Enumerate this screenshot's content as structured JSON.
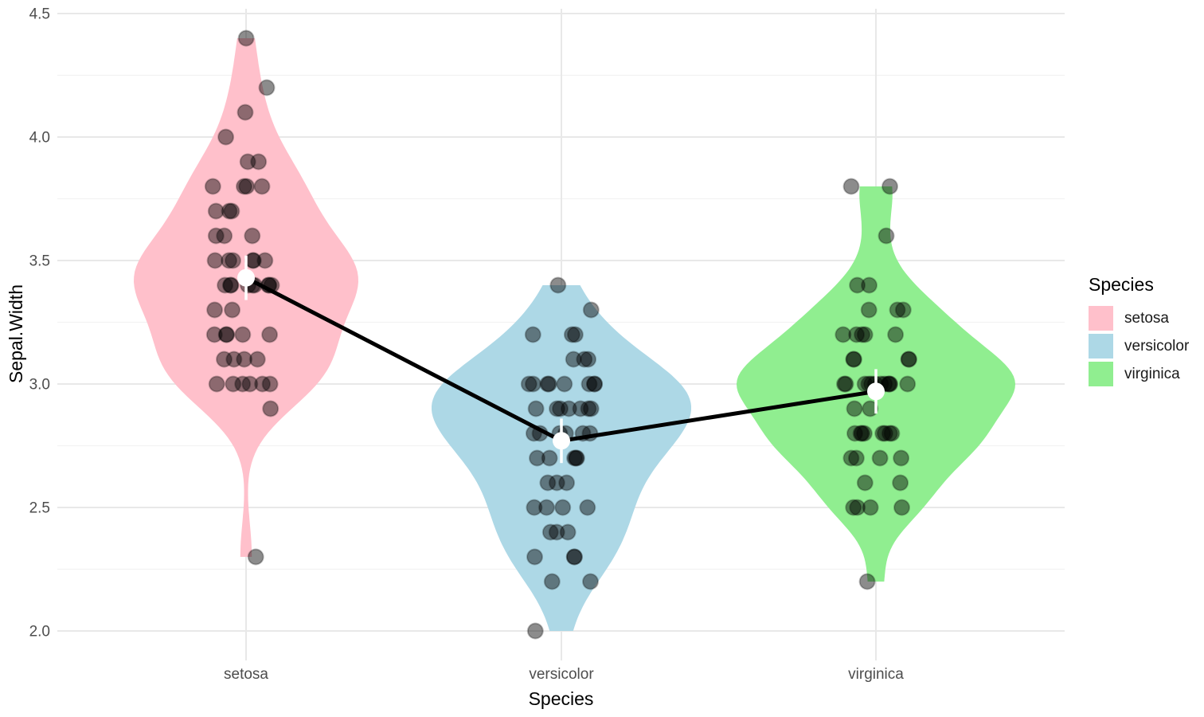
{
  "chart_data": {
    "type": "violin",
    "title": "",
    "xlabel": "Species",
    "ylabel": "Sepal.Width",
    "categories": [
      "setosa",
      "versicolor",
      "virginica"
    ],
    "grid": true,
    "background": "#FFFFFF",
    "gridline_color": "#E8E8E8",
    "minor_gridline_color": "#F2F2F2",
    "y_axis": {
      "range": [
        1.88,
        4.52
      ],
      "major_ticks": [
        2.0,
        2.5,
        3.0,
        3.5,
        4.0,
        4.5
      ],
      "tick_labels": [
        "2.0",
        "2.5",
        "3.0",
        "3.5",
        "4.0",
        "4.5"
      ],
      "minor_ticks": [
        2.25,
        2.75,
        3.25,
        3.75,
        4.25
      ]
    },
    "series": [
      {
        "name": "setosa",
        "color": "#FFC0CB",
        "values": [
          3.5,
          3.0,
          3.2,
          3.1,
          3.6,
          3.9,
          3.4,
          3.4,
          2.9,
          3.1,
          3.7,
          3.4,
          3.0,
          3.0,
          4.0,
          4.4,
          3.9,
          3.5,
          3.8,
          3.8,
          3.4,
          3.7,
          3.6,
          3.3,
          3.4,
          3.0,
          3.4,
          3.5,
          3.4,
          3.2,
          3.1,
          3.4,
          4.1,
          4.2,
          3.1,
          3.2,
          3.5,
          3.6,
          3.0,
          3.4,
          3.5,
          2.3,
          3.2,
          3.5,
          3.8,
          3.0,
          3.8,
          3.2,
          3.7,
          3.3
        ],
        "mean": 3.43,
        "errorbar": [
          3.34,
          3.52
        ]
      },
      {
        "name": "versicolor",
        "color": "#ADD8E6",
        "values": [
          3.2,
          3.2,
          3.1,
          2.3,
          2.8,
          2.8,
          3.3,
          2.4,
          2.9,
          2.7,
          2.0,
          3.0,
          2.2,
          2.9,
          2.9,
          3.1,
          3.0,
          2.7,
          2.2,
          2.5,
          3.2,
          2.8,
          2.5,
          2.8,
          2.9,
          3.0,
          2.8,
          3.0,
          2.9,
          2.6,
          2.4,
          2.4,
          2.7,
          2.7,
          3.0,
          3.4,
          3.1,
          2.3,
          3.0,
          2.5,
          2.6,
          3.0,
          2.6,
          2.3,
          2.7,
          3.0,
          2.9,
          2.9,
          2.5,
          2.8
        ],
        "mean": 2.77,
        "errorbar": [
          2.68,
          2.86
        ]
      },
      {
        "name": "virginica",
        "color": "#90EE90",
        "values": [
          3.3,
          2.7,
          3.0,
          2.9,
          3.0,
          3.0,
          2.5,
          2.9,
          2.5,
          3.6,
          3.2,
          2.7,
          3.0,
          2.5,
          2.8,
          3.2,
          3.0,
          3.8,
          2.6,
          2.2,
          3.2,
          2.8,
          2.8,
          2.7,
          3.3,
          3.2,
          2.8,
          3.0,
          2.8,
          3.0,
          2.8,
          3.8,
          2.8,
          2.8,
          2.6,
          3.0,
          3.4,
          3.1,
          3.0,
          3.1,
          3.1,
          3.1,
          2.7,
          3.2,
          3.3,
          3.0,
          2.5,
          3.0,
          3.4,
          3.0
        ],
        "mean": 2.97,
        "errorbar": [
          2.88,
          3.06
        ]
      }
    ],
    "overlays": {
      "jitter_points": true,
      "point_color": "#000000",
      "point_alpha": 0.45,
      "mean_line_color": "#000000",
      "mean_point_color": "#FFFFFF",
      "errorbar_color": "#FFFFFF"
    },
    "legend": {
      "position": "right",
      "title": "Species",
      "entries": [
        {
          "label": "setosa",
          "color": "#FFC0CB"
        },
        {
          "label": "versicolor",
          "color": "#ADD8E6"
        },
        {
          "label": "virginica",
          "color": "#90EE90"
        }
      ]
    }
  }
}
